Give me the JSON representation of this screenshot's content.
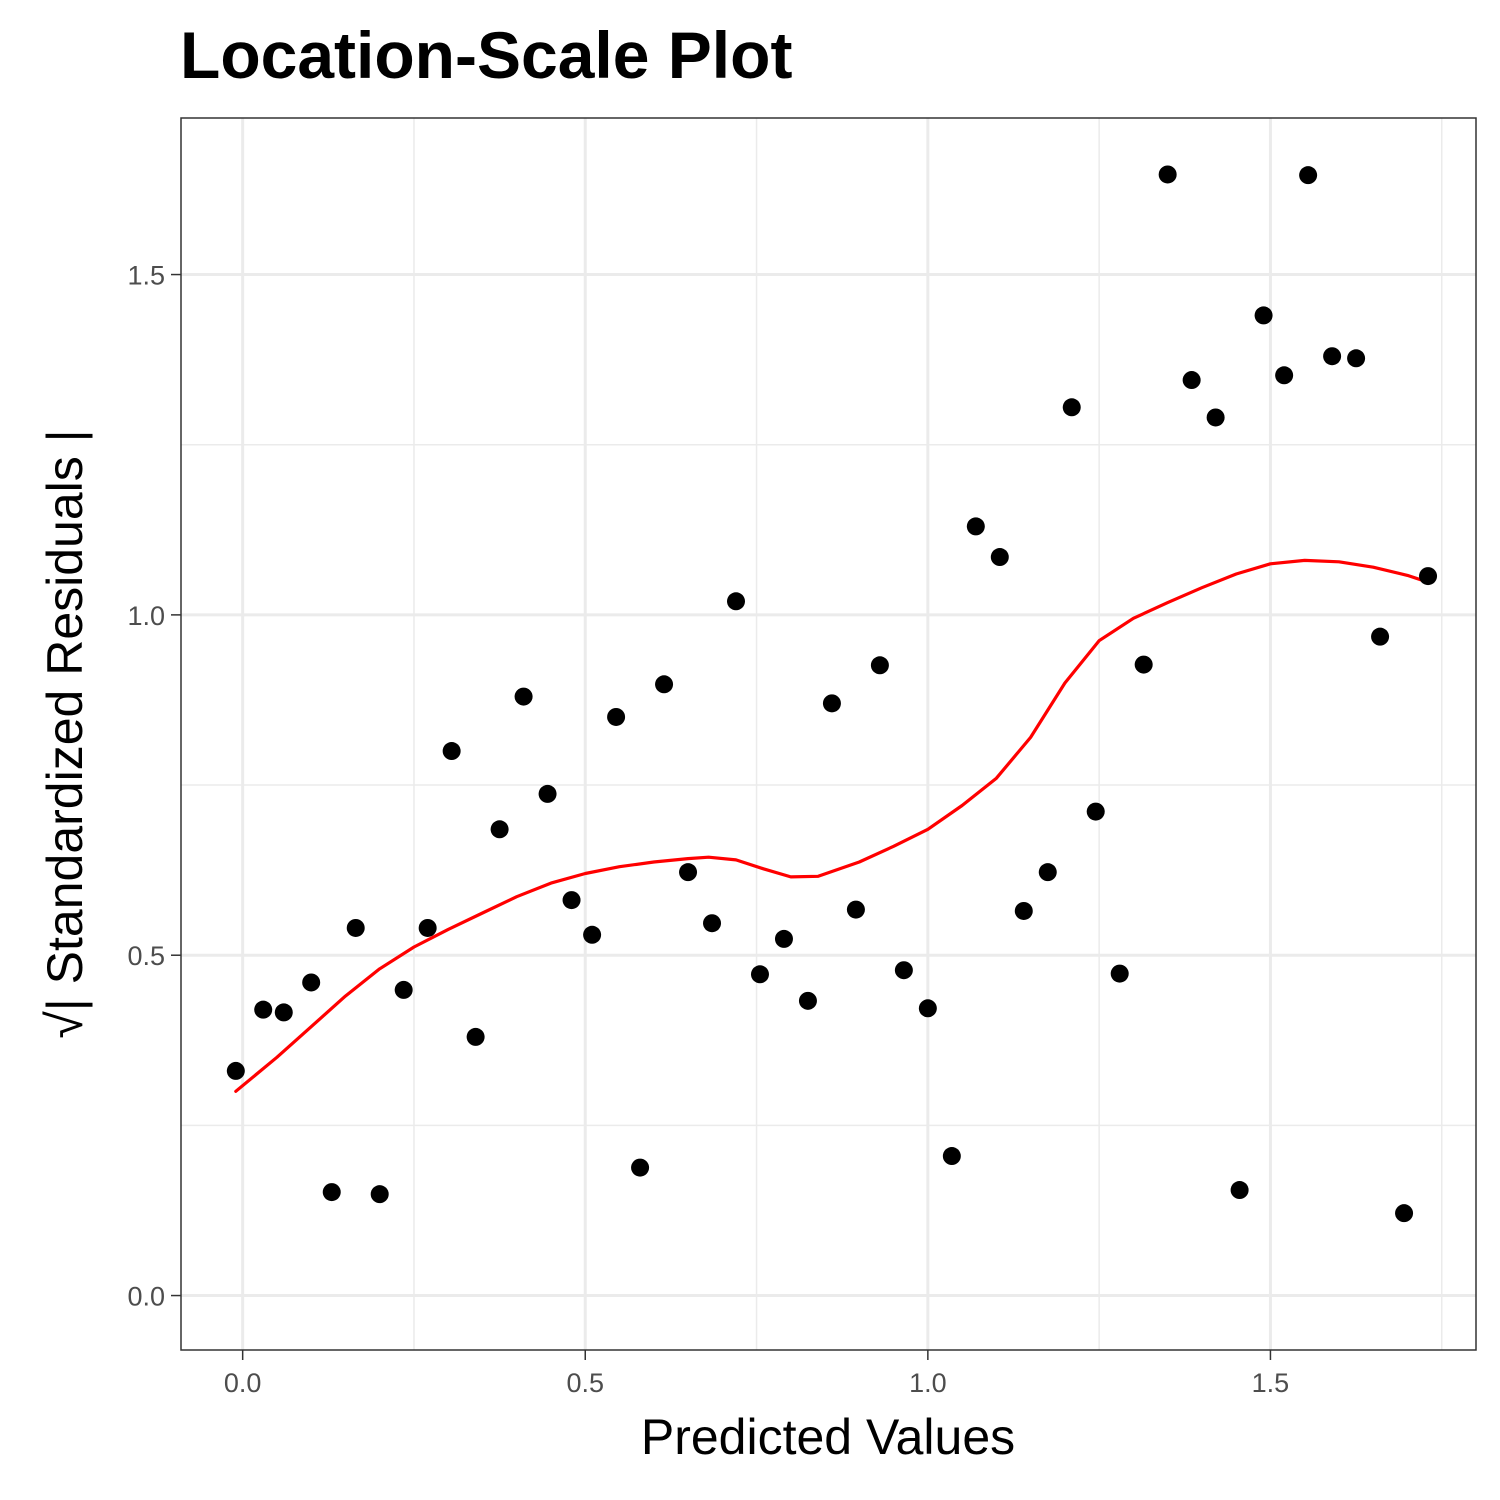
{
  "chart_data": {
    "type": "scatter",
    "title": "Location-Scale Plot",
    "xlabel": "Predicted Values",
    "ylabel": "√| Standardized Residuals |",
    "xlim": [
      -0.09,
      1.8
    ],
    "ylim": [
      -0.08,
      1.73
    ],
    "x_ticks": [
      0.0,
      0.5,
      1.0,
      1.5
    ],
    "x_tick_labels": [
      "0.0",
      "0.5",
      "1.0",
      "1.5"
    ],
    "y_ticks": [
      0.0,
      0.5,
      1.0,
      1.5
    ],
    "y_tick_labels": [
      "0.0",
      "0.5",
      "1.0",
      "1.5"
    ],
    "grid": true,
    "colors": {
      "points": "#000000",
      "smooth": "#ff0000",
      "grid": "#ebebeb",
      "panel_border": "#333333"
    },
    "series": [
      {
        "type": "scatter",
        "x": [
          -0.01,
          0.03,
          0.06,
          0.1,
          0.13,
          0.165,
          0.2,
          0.235,
          0.27,
          0.305,
          0.34,
          0.375,
          0.41,
          0.445,
          0.48,
          0.51,
          0.545,
          0.58,
          0.615,
          0.65,
          0.685,
          0.72,
          0.755,
          0.79,
          0.825,
          0.86,
          0.895,
          0.93,
          0.965,
          1.0,
          1.035,
          1.07,
          1.105,
          1.14,
          1.175,
          1.21,
          1.245,
          1.28,
          1.315,
          1.35,
          1.385,
          1.42,
          1.455,
          1.49,
          1.52,
          1.555,
          1.59,
          1.625,
          1.66,
          1.695,
          1.73
        ],
        "y": [
          0.33,
          0.42,
          0.416,
          0.46,
          0.152,
          0.54,
          0.149,
          0.449,
          0.54,
          0.8,
          0.38,
          0.685,
          0.88,
          0.737,
          0.581,
          0.53,
          0.85,
          0.188,
          0.898,
          0.622,
          0.547,
          1.02,
          0.472,
          0.524,
          0.433,
          0.87,
          0.567,
          0.926,
          0.478,
          0.422,
          0.205,
          1.13,
          1.085,
          0.565,
          0.622,
          1.305,
          0.711,
          0.473,
          0.927,
          1.647,
          1.345,
          1.29,
          0.155,
          1.44,
          1.352,
          1.646,
          1.38,
          1.377,
          0.968,
          0.121,
          1.057
        ]
      },
      {
        "type": "line",
        "x": [
          -0.01,
          0.05,
          0.1,
          0.15,
          0.2,
          0.25,
          0.3,
          0.35,
          0.4,
          0.45,
          0.5,
          0.55,
          0.6,
          0.65,
          0.68,
          0.72,
          0.76,
          0.8,
          0.84,
          0.9,
          0.95,
          1.0,
          1.05,
          1.1,
          1.15,
          1.2,
          1.25,
          1.3,
          1.35,
          1.4,
          1.45,
          1.5,
          1.55,
          1.6,
          1.65,
          1.7,
          1.73
        ],
        "y": [
          0.3,
          0.35,
          0.395,
          0.44,
          0.48,
          0.512,
          0.538,
          0.562,
          0.586,
          0.606,
          0.62,
          0.63,
          0.637,
          0.642,
          0.644,
          0.64,
          0.627,
          0.615,
          0.616,
          0.637,
          0.66,
          0.685,
          0.72,
          0.76,
          0.82,
          0.9,
          0.962,
          0.995,
          1.018,
          1.04,
          1.06,
          1.075,
          1.08,
          1.078,
          1.07,
          1.058,
          1.048
        ]
      }
    ]
  }
}
